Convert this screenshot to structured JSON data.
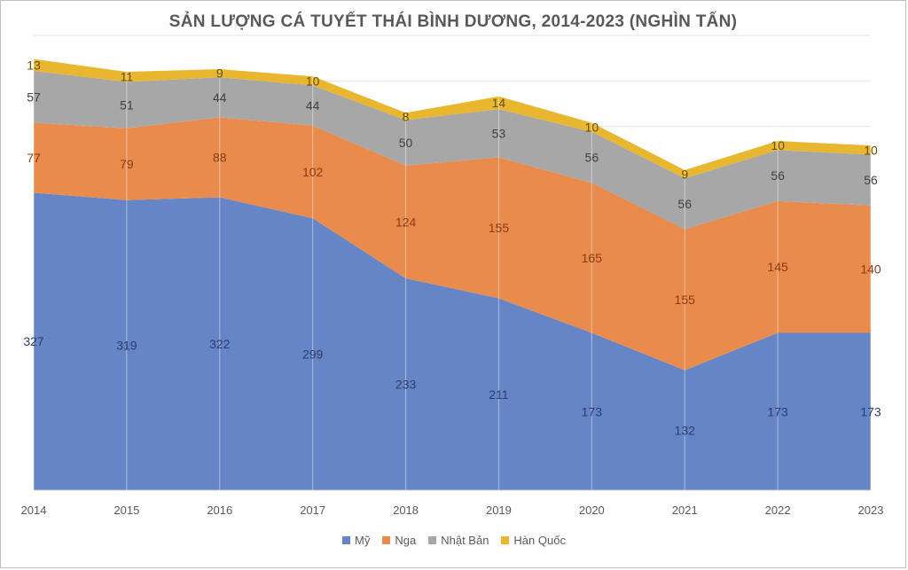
{
  "chart_data": {
    "type": "area",
    "stacked": true,
    "title": "SẢN LƯỢNG CÁ TUYẾT THÁI BÌNH DƯƠNG, 2014-2023 (NGHÌN TẤN)",
    "xlabel": "",
    "ylabel": "",
    "categories": [
      "2014",
      "2015",
      "2016",
      "2017",
      "2018",
      "2019",
      "2020",
      "2021",
      "2022",
      "2023"
    ],
    "series": [
      {
        "name": "Mỹ",
        "color": "#6585C6",
        "label_color": "#2F3C6E",
        "values": [
          327,
          319,
          322,
          299,
          233,
          211,
          173,
          132,
          173,
          173
        ]
      },
      {
        "name": "Nga",
        "color": "#E98B4C",
        "label_color": "#8B3A0F",
        "values": [
          77,
          79,
          88,
          102,
          124,
          155,
          165,
          155,
          145,
          140
        ]
      },
      {
        "name": "Nhật Bản",
        "color": "#A7A7A7",
        "label_color": "#404040",
        "values": [
          57,
          51,
          44,
          44,
          50,
          53,
          56,
          56,
          56,
          56
        ]
      },
      {
        "name": "Hàn Quốc",
        "color": "#E9B72F",
        "label_color": "#6B4E00",
        "values": [
          13,
          11,
          9,
          10,
          8,
          14,
          10,
          9,
          10,
          10
        ]
      }
    ],
    "ylim": [
      0,
      500
    ],
    "grid": true,
    "legend_position": "bottom"
  }
}
